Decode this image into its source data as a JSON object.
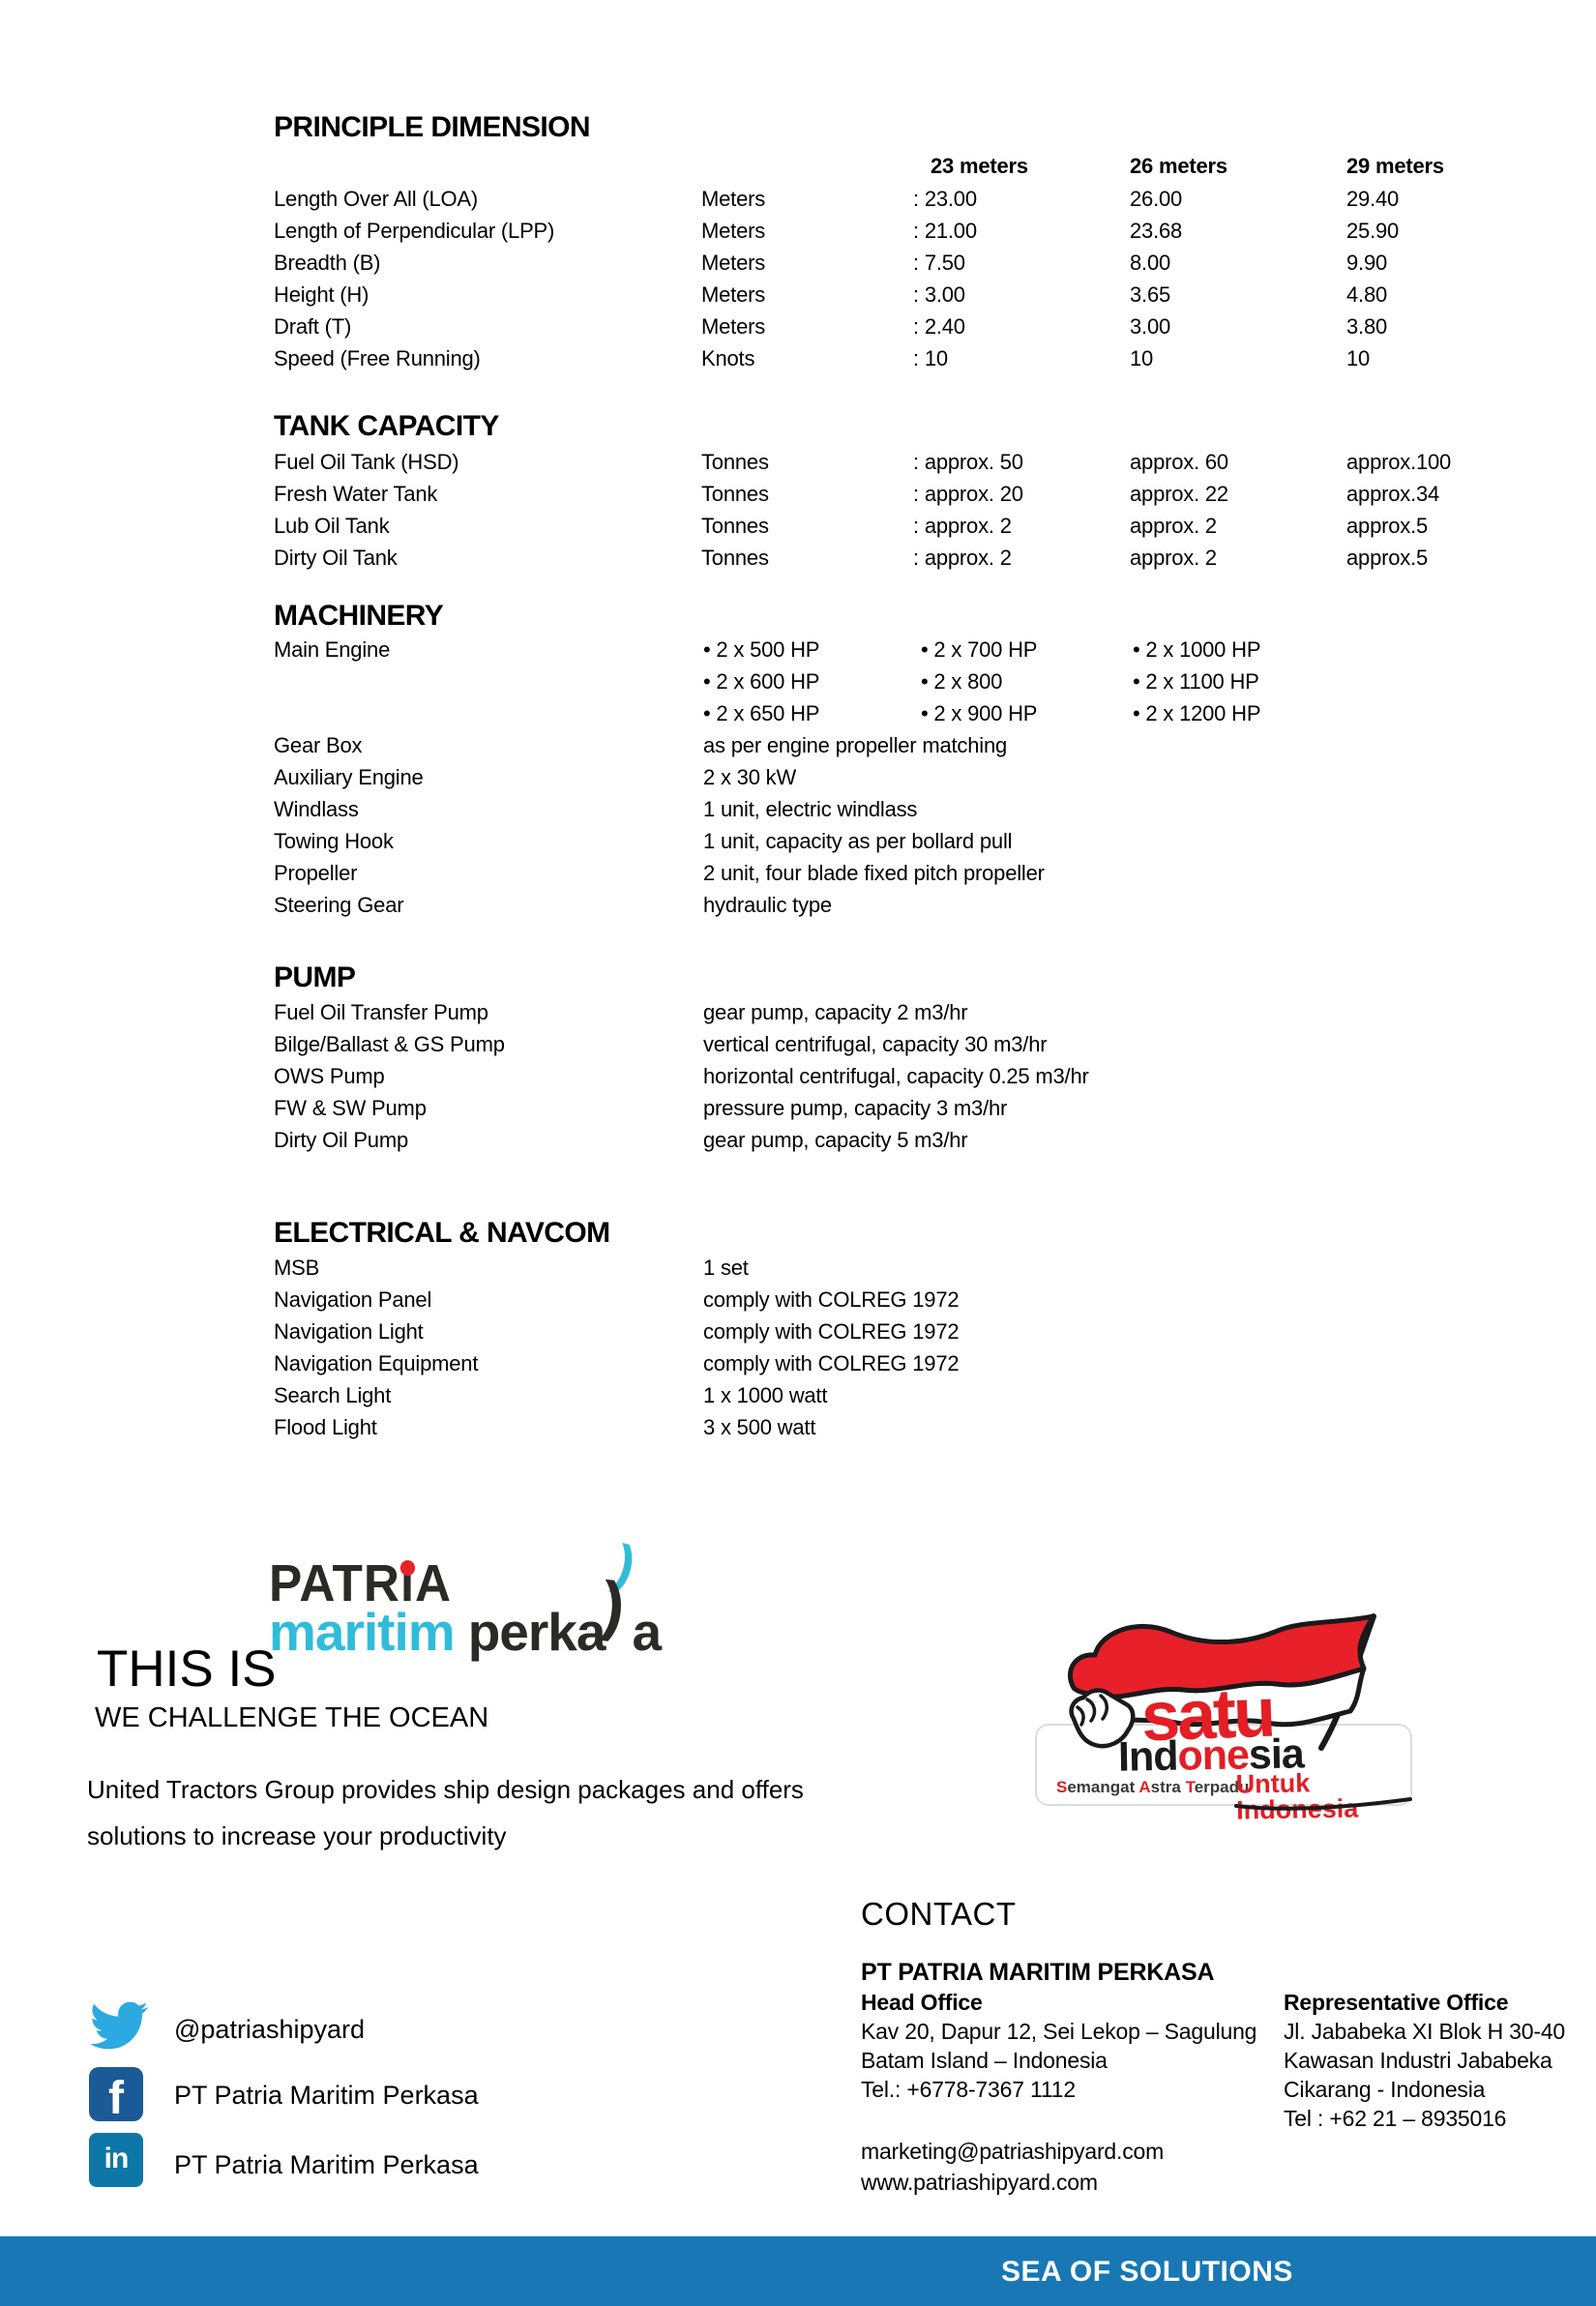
{
  "sections": [
    {
      "id": "principle_dimension",
      "title": "PRINCIPLE DIMENSION",
      "col_headers": [
        "23 meters",
        "26 meters",
        "29 meters"
      ],
      "rows": [
        [
          "Length Over All (LOA)",
          "Meters",
          ":  23.00",
          "26.00",
          "29.40"
        ],
        [
          "Length of Perpendicular (LPP)",
          "Meters",
          ":  21.00",
          "23.68",
          "25.90"
        ],
        [
          "Breadth (B)",
          "Meters",
          ":  7.50",
          "8.00",
          "9.90"
        ],
        [
          "Height (H)",
          "Meters",
          ":  3.00",
          "3.65",
          "4.80"
        ],
        [
          "Draft (T)",
          "Meters",
          ":  2.40",
          "3.00",
          "3.80"
        ],
        [
          "Speed (Free Running)",
          "Knots",
          ":  10",
          "10",
          "10"
        ]
      ]
    },
    {
      "id": "tank_capacity",
      "title": "TANK CAPACITY",
      "rows": [
        [
          "Fuel Oil Tank (HSD)",
          "Tonnes",
          ": approx. 50",
          "approx. 60",
          "approx.100"
        ],
        [
          "Fresh Water Tank",
          "Tonnes",
          ": approx. 20",
          "approx. 22",
          "approx.34"
        ],
        [
          "Lub Oil Tank",
          "Tonnes",
          ": approx. 2",
          "approx. 2",
          "approx.5"
        ],
        [
          "Dirty Oil Tank",
          "Tonnes",
          ": approx. 2",
          "approx. 2",
          "approx.5"
        ]
      ]
    },
    {
      "id": "machinery",
      "title": "MACHINERY",
      "engine_rows": [
        [
          "Main Engine",
          "• 2 x 500 HP",
          "• 2 x 700 HP",
          "• 2 x 1000 HP"
        ],
        [
          "",
          "• 2 x 600 HP",
          "• 2 x 800",
          "• 2 x 1100 HP"
        ],
        [
          "",
          "• 2 x 650 HP",
          "• 2 x 900 HP",
          "• 2 x 1200 HP"
        ]
      ],
      "rows": [
        [
          "Gear Box",
          "as per engine propeller matching"
        ],
        [
          "Auxiliary Engine",
          "2 x 30 kW"
        ],
        [
          "Windlass",
          "1 unit, electric windlass"
        ],
        [
          "Towing Hook",
          "1 unit, capacity as per bollard pull"
        ],
        [
          "Propeller",
          "2 unit, four blade fixed pitch propeller"
        ],
        [
          "Steering Gear",
          "hydraulic type"
        ]
      ]
    },
    {
      "id": "pump",
      "title": "PUMP",
      "rows": [
        [
          "Fuel Oil Transfer Pump",
          "gear pump, capacity 2 m3/hr"
        ],
        [
          "Bilge/Ballast & GS Pump",
          "vertical centrifugal, capacity 30 m3/hr"
        ],
        [
          "OWS Pump",
          "horizontal centrifugal, capacity 0.25 m3/hr"
        ],
        [
          "FW & SW Pump",
          "pressure pump, capacity 3 m3/hr"
        ],
        [
          "Dirty Oil Pump",
          "gear pump, capacity 5 m3/hr"
        ]
      ]
    },
    {
      "id": "electrical_navcom",
      "title": "ELECTRICAL & NAVCOM",
      "rows": [
        [
          "MSB",
          "1 set"
        ],
        [
          "Navigation Panel",
          "comply with COLREG 1972"
        ],
        [
          "Navigation Light",
          "comply with COLREG 1972"
        ],
        [
          "Navigation Equipment",
          "comply with COLREG 1972"
        ],
        [
          "Search Light",
          "1 x 1000 watt"
        ],
        [
          "Flood Light",
          "3 x 500 watt"
        ]
      ]
    }
  ],
  "branding": {
    "this_is": "THIS IS",
    "logo": {
      "patria_p1": "PATR",
      "patria_i": "ı",
      "patria_p2": "A",
      "maritim": "maritim",
      "perka": "perka",
      "s_cyan": ")",
      "s_black": ")",
      "a": "a"
    },
    "tagline": "WE CHALLENGE THE OCEAN",
    "description_line1": "United Tractors Group provides ship design packages and offers",
    "description_line2": "solutions to increase your productivity"
  },
  "satu_logo": {
    "word1": "satu",
    "indonesia_p1": "Ind",
    "indonesia_p2": "one",
    "indonesia_p3": "sia",
    "tagline": {
      "s1": "S",
      "s2": "emangat ",
      "s3": "A",
      "s4": "stra ",
      "s5": "T",
      "s6": "erpadu"
    },
    "untuk": "Untuk Indonesia"
  },
  "contact": {
    "heading": "CONTACT",
    "company": "PT  PATRIA MARITIM PERKASA",
    "head_office": {
      "label": "Head Office",
      "lines": [
        "Kav 20, Dapur 12, Sei Lekop – Sagulung",
        "Batam Island – Indonesia",
        "Tel.: +6778-7367 1112"
      ],
      "email": "marketing@patriashipyard.com",
      "website": "www.patriashipyard.com"
    },
    "rep_office": {
      "label": "Representative Office",
      "lines": [
        "Jl. Jababeka XI Blok H 30-40",
        "Kawasan Industri Jababeka",
        "Cikarang - Indonesia",
        "Tel : +62 21 – 8935016"
      ]
    }
  },
  "social": {
    "twitter": {
      "handle": "@patriashipyard"
    },
    "facebook": {
      "name": "PT Patria Maritim Perkasa"
    },
    "linkedin": {
      "name": "PT Patria Maritim Perkasa"
    }
  },
  "icons": {
    "facebook_glyph": "f",
    "linkedin_glyph": "in"
  },
  "footer": {
    "text": "SEA OF SOLUTIONS"
  },
  "colors": {
    "footer_blue": "#1877B4",
    "patria_dark": "#2B2A29",
    "patria_cyan": "#30BCD9",
    "patria_red": "#E8232A",
    "satu_red": "#E31E24",
    "flag_red": "#E8202A",
    "twitter_blue": "#2BA9E0",
    "facebook_blue": "#1A5A96",
    "linkedin_blue": "#0F76A8"
  }
}
